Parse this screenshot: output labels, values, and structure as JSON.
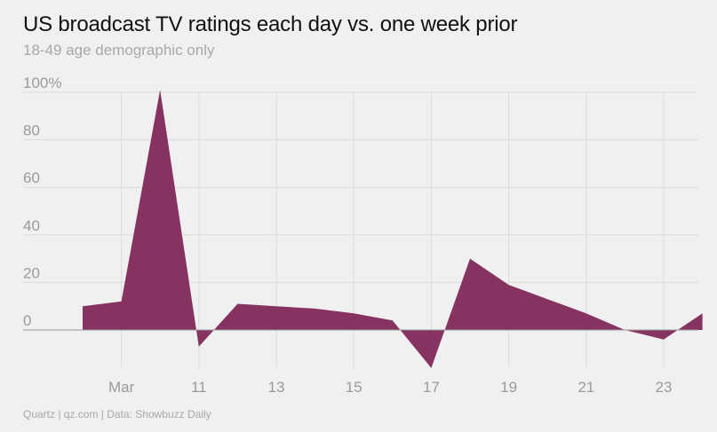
{
  "header": {
    "title": "US broadcast TV ratings each day vs. one week prior",
    "subtitle": "18-49 age demographic only"
  },
  "footer": {
    "credit": "Quartz | qz.com | Data: Showbuzz Daily"
  },
  "colors": {
    "area": "#873362",
    "background": "#f0f0f0",
    "grid": "#dcdcdc",
    "zero_line": "#9a9a9a",
    "tick_text": "#9a9a9a"
  },
  "chart_data": {
    "type": "area",
    "title": "US broadcast TV ratings each day vs. one week prior",
    "subtitle": "18-49 age demographic only",
    "xlabel": "",
    "ylabel": "",
    "x": [
      "2020-03-08",
      "2020-03-09",
      "2020-03-10",
      "2020-03-11",
      "2020-03-12",
      "2020-03-13",
      "2020-03-14",
      "2020-03-15",
      "2020-03-16",
      "2020-03-17",
      "2020-03-18",
      "2020-03-19",
      "2020-03-20",
      "2020-03-21",
      "2020-03-22",
      "2020-03-23",
      "2020-03-24"
    ],
    "series": [
      {
        "values": [
          10,
          12,
          101,
          -7,
          11,
          10,
          9,
          7,
          4,
          -16,
          30,
          19,
          13,
          7,
          0,
          -4,
          7
        ]
      }
    ],
    "ylim": [
      -16,
      101
    ],
    "y_ticks": [
      0,
      20,
      40,
      60,
      80,
      100
    ],
    "y_tick_labels": [
      "0",
      "20",
      "40",
      "60",
      "80",
      "100%"
    ],
    "x_ticks": [
      "2020-03-09",
      "2020-03-11",
      "2020-03-13",
      "2020-03-15",
      "2020-03-17",
      "2020-03-19",
      "2020-03-21",
      "2020-03-23"
    ],
    "x_tick_labels": [
      "Mar",
      "11",
      "13",
      "15",
      "17",
      "19",
      "21",
      "23"
    ],
    "grid": true,
    "legend": "none"
  }
}
